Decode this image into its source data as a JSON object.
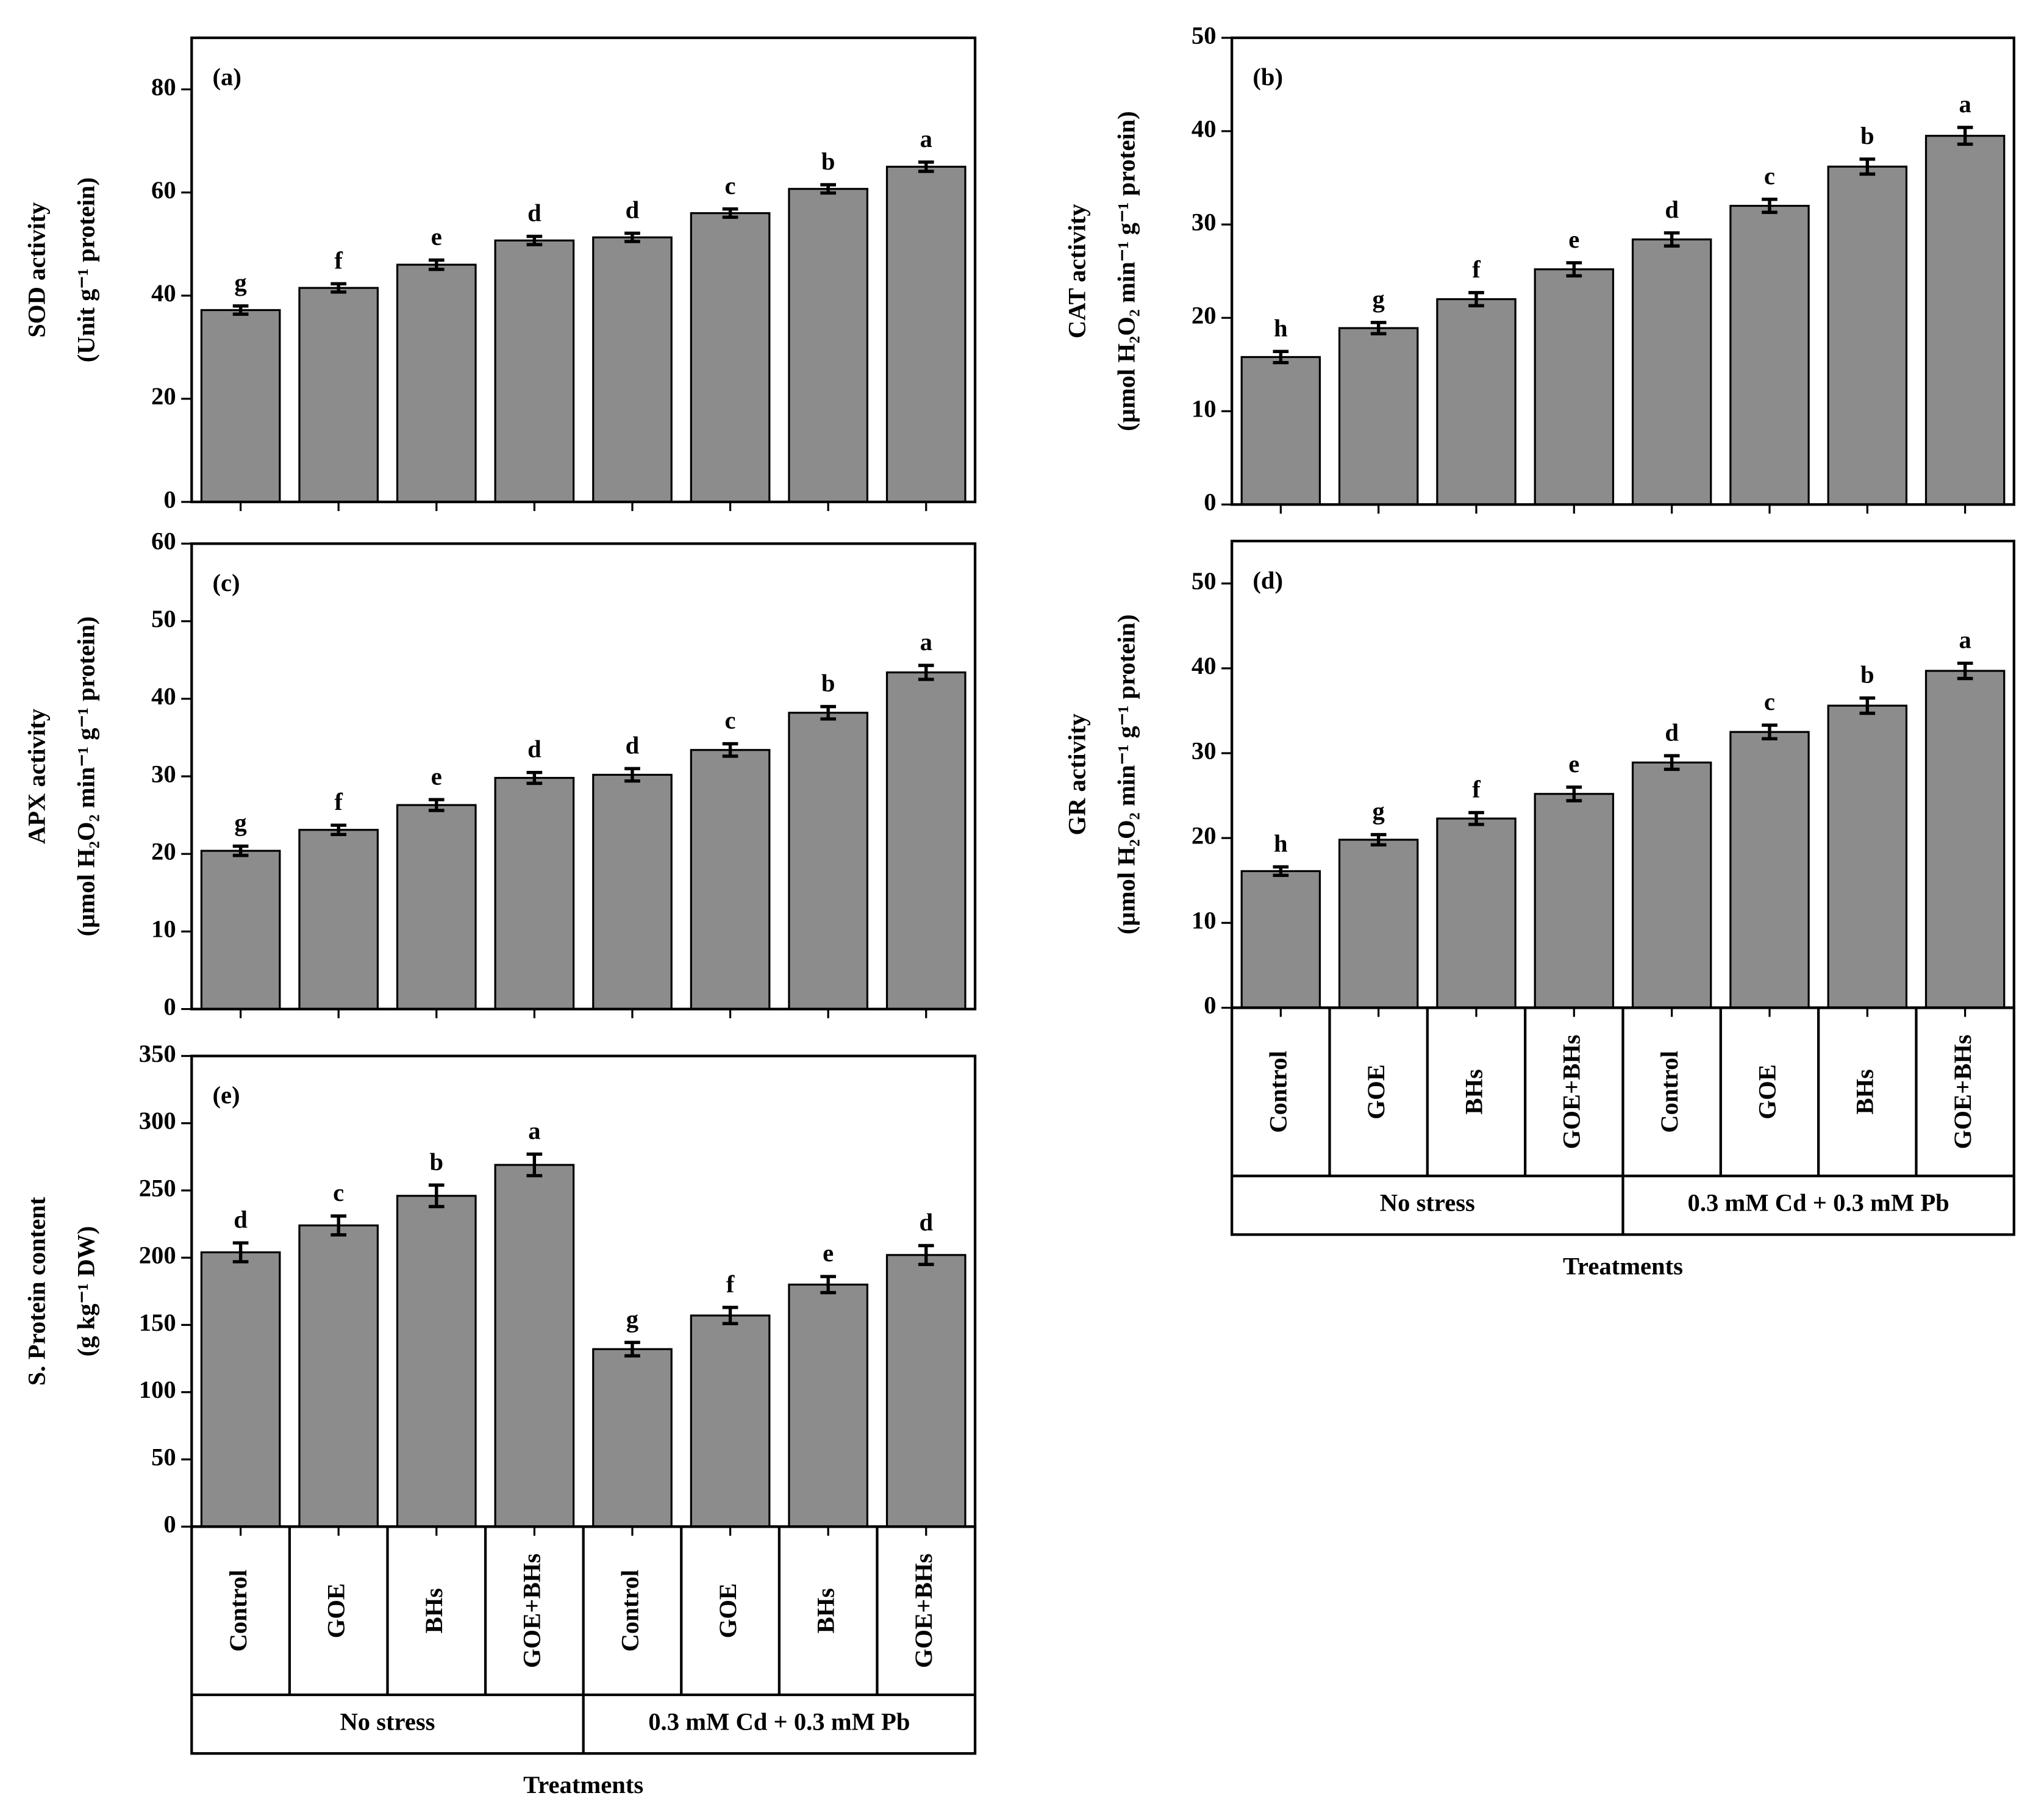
{
  "chart_data": [
    {
      "type": "bar",
      "panel_label": "(a)",
      "ylabel": [
        "SOD activity",
        "(Unit g⁻¹ protein)"
      ],
      "values": [
        37.2,
        41.5,
        46.0,
        50.7,
        51.3,
        56.0,
        60.7,
        65.0
      ],
      "errors": [
        0.8,
        0.8,
        0.9,
        0.8,
        0.8,
        0.8,
        0.8,
        0.9
      ],
      "annotations": [
        "g",
        "f",
        "e",
        "d",
        "d",
        "c",
        "b",
        "a"
      ],
      "color": "#8c8c8c",
      "ylim": [
        0,
        90
      ],
      "yticks": [
        0,
        20,
        40,
        60,
        80
      ]
    },
    {
      "type": "bar",
      "panel_label": "(b)",
      "ylabel": [
        "CAT activity",
        "(µmol H₂O₂ min⁻¹ g⁻¹ protein)"
      ],
      "values": [
        15.8,
        18.9,
        22.0,
        25.2,
        28.4,
        32.0,
        36.2,
        39.5
      ],
      "errors": [
        0.6,
        0.6,
        0.7,
        0.7,
        0.7,
        0.7,
        0.8,
        0.9
      ],
      "annotations": [
        "h",
        "g",
        "f",
        "e",
        "d",
        "c",
        "b",
        "a"
      ],
      "color": "#8c8c8c",
      "ylim": [
        0,
        50
      ],
      "yticks": [
        0,
        10,
        20,
        30,
        40,
        50
      ]
    },
    {
      "type": "bar",
      "panel_label": "(c)",
      "ylabel": [
        "APX activity",
        "(µmol H₂O₂ min⁻¹ g⁻¹ protein)"
      ],
      "values": [
        20.4,
        23.1,
        26.3,
        29.8,
        30.2,
        33.4,
        38.2,
        43.4
      ],
      "errors": [
        0.6,
        0.6,
        0.7,
        0.7,
        0.8,
        0.8,
        0.8,
        0.9
      ],
      "annotations": [
        "g",
        "f",
        "e",
        "d",
        "d",
        "c",
        "b",
        "a"
      ],
      "color": "#8c8c8c",
      "ylim": [
        0,
        60
      ],
      "yticks": [
        0,
        10,
        20,
        30,
        40,
        50,
        60
      ]
    },
    {
      "type": "bar",
      "panel_label": "(d)",
      "ylabel": [
        "GR activity",
        "(µmol H₂O₂ min⁻¹ g⁻¹ protein)"
      ],
      "values": [
        16.1,
        19.8,
        22.3,
        25.2,
        28.9,
        32.5,
        35.6,
        39.7
      ],
      "errors": [
        0.5,
        0.6,
        0.7,
        0.8,
        0.8,
        0.8,
        0.9,
        0.9
      ],
      "annotations": [
        "h",
        "g",
        "f",
        "e",
        "d",
        "c",
        "b",
        "a"
      ],
      "color": "#8c8c8c",
      "ylim": [
        0,
        55
      ],
      "yticks": [
        0,
        10,
        20,
        30,
        40,
        50
      ],
      "categories": [
        "Control",
        "GOE",
        "BHs",
        "GOE+BHs",
        "Control",
        "GOE",
        "BHs",
        "GOE+BHs"
      ],
      "groups": [
        "No stress",
        "0.3 mM Cd + 0.3 mM Pb"
      ],
      "xlabel": "Treatments"
    },
    {
      "type": "bar",
      "panel_label": "(e)",
      "ylabel": [
        "S. Protein content",
        "(g kg⁻¹ DW)"
      ],
      "values": [
        204,
        224,
        246,
        269,
        132,
        157,
        180,
        202
      ],
      "errors": [
        7,
        7,
        8,
        8,
        5,
        6,
        6,
        7
      ],
      "annotations": [
        "d",
        "c",
        "b",
        "a",
        "g",
        "f",
        "e",
        "d"
      ],
      "color": "#8c8c8c",
      "ylim": [
        0,
        350
      ],
      "yticks": [
        0,
        50,
        100,
        150,
        200,
        250,
        300,
        350
      ],
      "categories": [
        "Control",
        "GOE",
        "BHs",
        "GOE+BHs",
        "Control",
        "GOE",
        "BHs",
        "GOE+BHs"
      ],
      "groups": [
        "No stress",
        "0.3 mM Cd + 0.3 mM Pb"
      ],
      "xlabel": "Treatments"
    }
  ]
}
